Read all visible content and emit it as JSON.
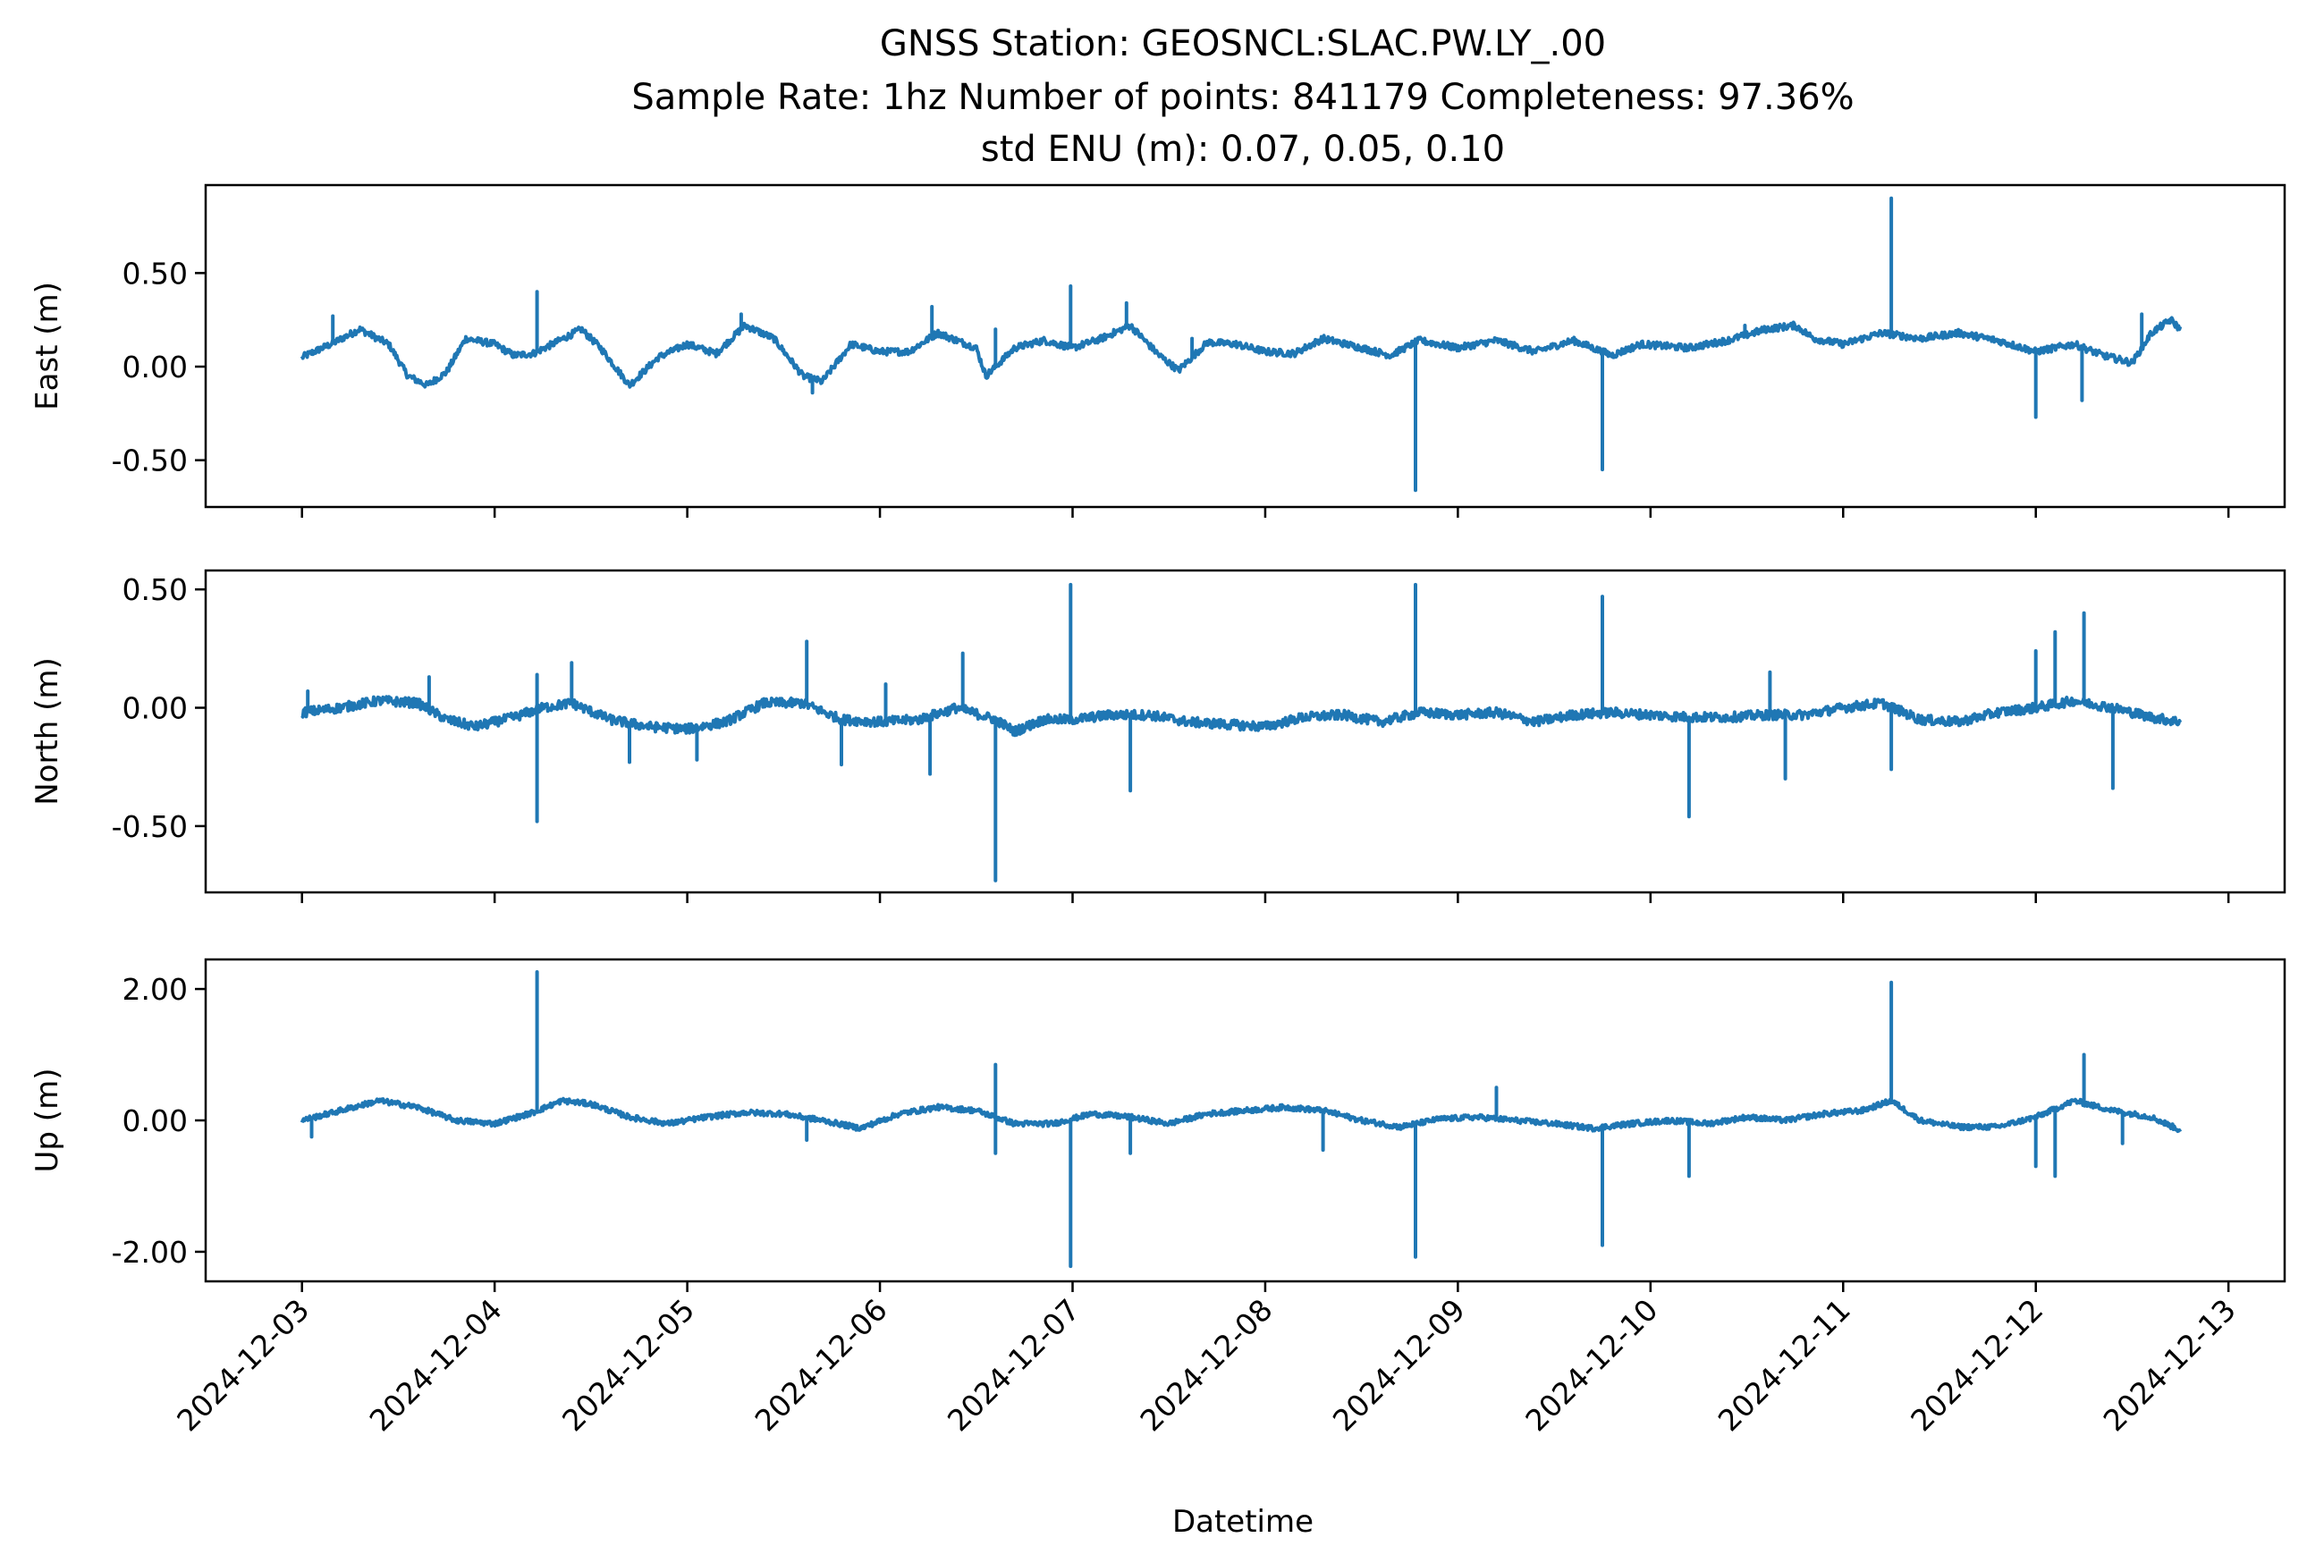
{
  "title": {
    "line1": "GNSS Station: GEOSNCL:SLAC.PW.LY_.00",
    "line2": "Sample Rate: 1hz   Number of points: 841179    Completeness:  97.36%",
    "line3": "std ENU (m):  0.07, 0.05, 0.10"
  },
  "chart_data": {
    "type": "line",
    "xlabel": "Datetime",
    "x_ticks": [
      "2024-12-03",
      "2024-12-04",
      "2024-12-05",
      "2024-12-06",
      "2024-12-07",
      "2024-12-08",
      "2024-12-09",
      "2024-12-10",
      "2024-12-11",
      "2024-12-12",
      "2024-12-13"
    ],
    "xlim": [
      "2024-12-02T12:00",
      "2024-12-13T07:00"
    ],
    "data_range": [
      "2024-12-03T00:00",
      "2024-12-12T18:00"
    ],
    "series_color": "#1f77b4",
    "grid": false,
    "legend": "none",
    "panels": [
      {
        "ylabel": "East (m)",
        "ylim": [
          -0.75,
          0.97
        ],
        "y_ticks": [
          0.5,
          0.0,
          -0.5
        ],
        "y_tick_labels": [
          "0.50",
          "0.00",
          "-0.50"
        ],
        "baseline": [
          [
            0.0,
            0.05
          ],
          [
            0.15,
            0.12
          ],
          [
            0.3,
            0.2
          ],
          [
            0.45,
            0.12
          ],
          [
            0.55,
            -0.05
          ],
          [
            0.65,
            -0.1
          ],
          [
            0.75,
            -0.03
          ],
          [
            0.85,
            0.15
          ],
          [
            1.0,
            0.12
          ],
          [
            1.1,
            0.06
          ],
          [
            1.2,
            0.07
          ],
          [
            1.3,
            0.12
          ],
          [
            1.45,
            0.2
          ],
          [
            1.55,
            0.1
          ],
          [
            1.7,
            -0.1
          ],
          [
            1.85,
            0.05
          ],
          [
            2.0,
            0.12
          ],
          [
            2.15,
            0.07
          ],
          [
            2.3,
            0.22
          ],
          [
            2.45,
            0.15
          ],
          [
            2.6,
            -0.05
          ],
          [
            2.7,
            -0.08
          ],
          [
            2.85,
            0.12
          ],
          [
            3.0,
            0.08
          ],
          [
            3.15,
            0.08
          ],
          [
            3.3,
            0.18
          ],
          [
            3.5,
            0.1
          ],
          [
            3.55,
            -0.05
          ],
          [
            3.7,
            0.1
          ],
          [
            3.85,
            0.14
          ],
          [
            4.0,
            0.1
          ],
          [
            4.15,
            0.15
          ],
          [
            4.3,
            0.22
          ],
          [
            4.45,
            0.06
          ],
          [
            4.55,
            -0.02
          ],
          [
            4.7,
            0.13
          ],
          [
            4.85,
            0.12
          ],
          [
            5.0,
            0.08
          ],
          [
            5.15,
            0.07
          ],
          [
            5.3,
            0.15
          ],
          [
            5.5,
            0.1
          ],
          [
            5.65,
            0.06
          ],
          [
            5.8,
            0.14
          ],
          [
            6.0,
            0.1
          ],
          [
            6.2,
            0.14
          ],
          [
            6.4,
            0.08
          ],
          [
            6.6,
            0.14
          ],
          [
            6.8,
            0.06
          ],
          [
            6.95,
            0.12
          ],
          [
            7.2,
            0.1
          ],
          [
            7.4,
            0.14
          ],
          [
            7.6,
            0.2
          ],
          [
            7.75,
            0.22
          ],
          [
            7.85,
            0.15
          ],
          [
            8.0,
            0.12
          ],
          [
            8.2,
            0.18
          ],
          [
            8.4,
            0.15
          ],
          [
            8.6,
            0.18
          ],
          [
            8.8,
            0.14
          ],
          [
            9.0,
            0.08
          ],
          [
            9.2,
            0.12
          ],
          [
            9.35,
            0.06
          ],
          [
            9.5,
            0.02
          ],
          [
            9.6,
            0.18
          ],
          [
            9.7,
            0.25
          ],
          [
            9.75,
            0.2
          ]
        ],
        "noise": 0.018,
        "spikes": [
          [
            0.16,
            0.27
          ],
          [
            1.22,
            0.4
          ],
          [
            2.28,
            0.28
          ],
          [
            2.65,
            -0.14
          ],
          [
            3.27,
            0.32
          ],
          [
            3.6,
            0.2
          ],
          [
            3.99,
            0.43
          ],
          [
            4.28,
            0.34
          ],
          [
            4.62,
            0.15
          ],
          [
            5.78,
            -0.66
          ],
          [
            6.75,
            -0.55
          ],
          [
            7.49,
            0.22
          ],
          [
            8.25,
            0.9
          ],
          [
            9.0,
            -0.27
          ],
          [
            9.24,
            -0.18
          ],
          [
            9.55,
            0.28
          ]
        ]
      },
      {
        "ylabel": "North (m)",
        "ylim": [
          -0.78,
          0.58
        ],
        "y_ticks": [
          0.5,
          0.0,
          -0.5
        ],
        "y_tick_labels": [
          "0.50",
          "0.00",
          "-0.50"
        ],
        "baseline": [
          [
            0.0,
            -0.02
          ],
          [
            0.2,
            0.0
          ],
          [
            0.4,
            0.03
          ],
          [
            0.6,
            0.02
          ],
          [
            0.75,
            -0.05
          ],
          [
            0.9,
            -0.08
          ],
          [
            1.1,
            -0.04
          ],
          [
            1.25,
            0.0
          ],
          [
            1.4,
            0.02
          ],
          [
            1.6,
            -0.05
          ],
          [
            1.8,
            -0.08
          ],
          [
            2.0,
            -0.09
          ],
          [
            2.2,
            -0.06
          ],
          [
            2.4,
            0.02
          ],
          [
            2.6,
            0.02
          ],
          [
            2.8,
            -0.05
          ],
          [
            3.0,
            -0.06
          ],
          [
            3.2,
            -0.05
          ],
          [
            3.4,
            0.0
          ],
          [
            3.6,
            -0.05
          ],
          [
            3.7,
            -0.1
          ],
          [
            3.85,
            -0.05
          ],
          [
            4.0,
            -0.05
          ],
          [
            4.2,
            -0.03
          ],
          [
            4.4,
            -0.03
          ],
          [
            4.6,
            -0.06
          ],
          [
            4.8,
            -0.07
          ],
          [
            5.0,
            -0.08
          ],
          [
            5.2,
            -0.04
          ],
          [
            5.4,
            -0.03
          ],
          [
            5.6,
            -0.06
          ],
          [
            5.8,
            -0.02
          ],
          [
            6.0,
            -0.03
          ],
          [
            6.2,
            -0.02
          ],
          [
            6.4,
            -0.06
          ],
          [
            6.6,
            -0.03
          ],
          [
            6.8,
            -0.02
          ],
          [
            7.0,
            -0.03
          ],
          [
            7.2,
            -0.04
          ],
          [
            7.4,
            -0.04
          ],
          [
            7.6,
            -0.03
          ],
          [
            7.8,
            -0.03
          ],
          [
            8.0,
            0.0
          ],
          [
            8.2,
            0.02
          ],
          [
            8.4,
            -0.05
          ],
          [
            8.6,
            -0.06
          ],
          [
            8.8,
            -0.02
          ],
          [
            9.0,
            0.0
          ],
          [
            9.2,
            0.03
          ],
          [
            9.4,
            0.0
          ],
          [
            9.6,
            -0.04
          ],
          [
            9.75,
            -0.06
          ]
        ],
        "noise": 0.02,
        "spikes": [
          [
            0.03,
            0.07
          ],
          [
            0.66,
            0.13
          ],
          [
            1.22,
            -0.48
          ],
          [
            1.22,
            0.14
          ],
          [
            1.4,
            0.19
          ],
          [
            1.7,
            -0.23
          ],
          [
            2.05,
            -0.22
          ],
          [
            2.62,
            0.28
          ],
          [
            2.8,
            -0.24
          ],
          [
            3.03,
            0.1
          ],
          [
            3.26,
            -0.28
          ],
          [
            3.43,
            0.23
          ],
          [
            3.6,
            -0.73
          ],
          [
            3.99,
            0.52
          ],
          [
            4.3,
            -0.35
          ],
          [
            5.78,
            0.52
          ],
          [
            6.75,
            0.47
          ],
          [
            7.2,
            -0.46
          ],
          [
            7.62,
            0.15
          ],
          [
            7.7,
            -0.3
          ],
          [
            8.25,
            -0.26
          ],
          [
            9.0,
            0.24
          ],
          [
            9.1,
            0.32
          ],
          [
            9.25,
            0.4
          ],
          [
            9.4,
            -0.34
          ]
        ]
      },
      {
        "ylabel": "Up (m)",
        "ylim": [
          -2.45,
          2.45
        ],
        "y_ticks": [
          2.0,
          0.0,
          -2.0
        ],
        "y_tick_labels": [
          "2.00",
          "0.00",
          "-2.00"
        ],
        "baseline": [
          [
            0.0,
            0.0
          ],
          [
            0.2,
            0.15
          ],
          [
            0.4,
            0.3
          ],
          [
            0.6,
            0.2
          ],
          [
            0.8,
            0.0
          ],
          [
            1.0,
            -0.05
          ],
          [
            1.2,
            0.12
          ],
          [
            1.35,
            0.3
          ],
          [
            1.5,
            0.25
          ],
          [
            1.7,
            0.05
          ],
          [
            1.9,
            -0.05
          ],
          [
            2.1,
            0.05
          ],
          [
            2.3,
            0.12
          ],
          [
            2.5,
            0.1
          ],
          [
            2.7,
            0.0
          ],
          [
            2.9,
            -0.12
          ],
          [
            3.1,
            0.1
          ],
          [
            3.3,
            0.2
          ],
          [
            3.5,
            0.15
          ],
          [
            3.7,
            -0.05
          ],
          [
            3.9,
            -0.05
          ],
          [
            4.1,
            0.1
          ],
          [
            4.3,
            0.05
          ],
          [
            4.5,
            -0.05
          ],
          [
            4.7,
            0.1
          ],
          [
            4.9,
            0.15
          ],
          [
            5.1,
            0.2
          ],
          [
            5.3,
            0.15
          ],
          [
            5.5,
            0.0
          ],
          [
            5.7,
            -0.1
          ],
          [
            5.9,
            0.02
          ],
          [
            6.1,
            0.05
          ],
          [
            6.3,
            0.0
          ],
          [
            6.5,
            -0.05
          ],
          [
            6.7,
            -0.12
          ],
          [
            6.9,
            -0.05
          ],
          [
            7.1,
            0.0
          ],
          [
            7.3,
            -0.05
          ],
          [
            7.5,
            0.05
          ],
          [
            7.7,
            0.0
          ],
          [
            7.9,
            0.1
          ],
          [
            8.1,
            0.15
          ],
          [
            8.25,
            0.3
          ],
          [
            8.4,
            0.0
          ],
          [
            8.6,
            -0.1
          ],
          [
            8.8,
            -0.1
          ],
          [
            9.0,
            0.05
          ],
          [
            9.2,
            0.3
          ],
          [
            9.4,
            0.15
          ],
          [
            9.6,
            0.05
          ],
          [
            9.75,
            -0.15
          ]
        ],
        "noise": 0.04,
        "spikes": [
          [
            0.05,
            -0.25
          ],
          [
            1.22,
            2.26
          ],
          [
            2.62,
            -0.3
          ],
          [
            3.6,
            0.85
          ],
          [
            3.6,
            -0.5
          ],
          [
            3.99,
            -2.22
          ],
          [
            4.3,
            -0.5
          ],
          [
            5.3,
            -0.45
          ],
          [
            5.78,
            -2.08
          ],
          [
            6.2,
            0.5
          ],
          [
            6.75,
            -1.9
          ],
          [
            7.2,
            -0.85
          ],
          [
            8.25,
            2.1
          ],
          [
            9.0,
            -0.7
          ],
          [
            9.1,
            -0.85
          ],
          [
            9.25,
            1.0
          ],
          [
            9.45,
            -0.35
          ]
        ]
      }
    ]
  }
}
